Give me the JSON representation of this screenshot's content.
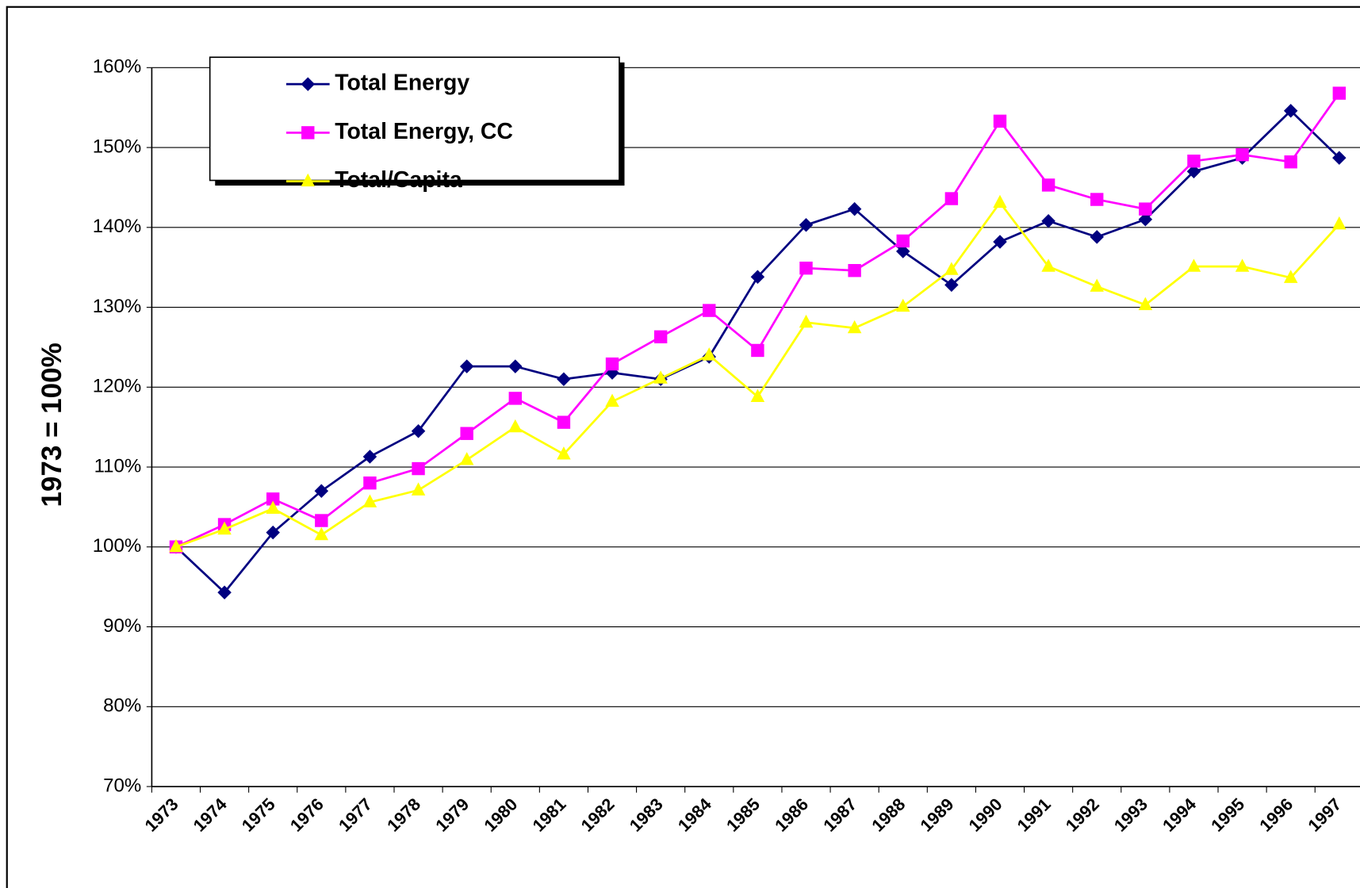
{
  "chart_data": {
    "type": "line",
    "y_label": "1973 = 100%",
    "categories": [
      "1973",
      "1974",
      "1975",
      "1976",
      "1977",
      "1978",
      "1979",
      "1980",
      "1981",
      "1982",
      "1983",
      "1984",
      "1985",
      "1986",
      "1987",
      "1988",
      "1989",
      "1990",
      "1991",
      "1992",
      "1993",
      "1994",
      "1995",
      "1996",
      "1997"
    ],
    "series": [
      {
        "name": "Total Energy",
        "color": "#000080",
        "marker": "diamond",
        "values": [
          100,
          94.3,
          101.8,
          107,
          111.3,
          114.5,
          122.6,
          122.6,
          121,
          121.8,
          121,
          123.8,
          133.8,
          140.3,
          142.3,
          137,
          132.8,
          138.2,
          140.8,
          138.8,
          141,
          147,
          148.7,
          154.6,
          148.7
        ]
      },
      {
        "name": "Total Energy, CC",
        "color": "#ff00ff",
        "marker": "square",
        "values": [
          100,
          102.8,
          106,
          103.3,
          108,
          109.8,
          114.2,
          118.6,
          115.6,
          122.9,
          126.3,
          129.6,
          124.6,
          134.9,
          134.6,
          138.3,
          143.6,
          153.3,
          145.3,
          143.5,
          142.3,
          148.3,
          149.1,
          148.2,
          156.8
        ]
      },
      {
        "name": "Total/Capita",
        "color": "#ffff00",
        "marker": "triangle",
        "values": [
          100,
          102.2,
          104.8,
          101.5,
          105.6,
          107.1,
          110.9,
          115,
          111.6,
          118.2,
          121.1,
          124,
          118.8,
          128.1,
          127.4,
          130.1,
          134.7,
          143.1,
          135.1,
          132.6,
          130.3,
          135.1,
          135.1,
          133.7,
          140.4
        ]
      }
    ],
    "ylim": [
      70,
      160
    ],
    "yticks": [
      {
        "value": 70,
        "label": "70%"
      },
      {
        "value": 80,
        "label": "80%"
      },
      {
        "value": 90,
        "label": "90%"
      },
      {
        "value": 100,
        "label": "100%"
      },
      {
        "value": 110,
        "label": "110%"
      },
      {
        "value": 120,
        "label": "120%"
      },
      {
        "value": 130,
        "label": "130%"
      },
      {
        "value": 140,
        "label": "140%"
      },
      {
        "value": 150,
        "label": "150%"
      },
      {
        "value": 160,
        "label": "160%"
      }
    ],
    "grid": true,
    "legend": "top-left"
  }
}
